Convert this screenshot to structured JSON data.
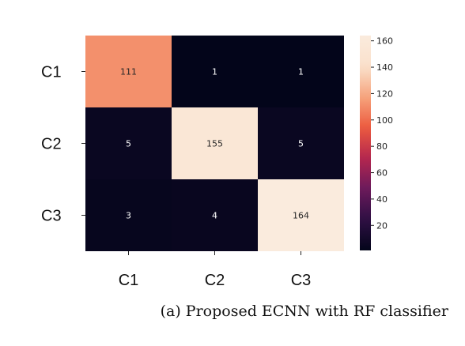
{
  "chart_data": {
    "type": "heatmap",
    "x_labels": [
      "C1",
      "C2",
      "C3"
    ],
    "y_labels": [
      "C1",
      "C2",
      "C3"
    ],
    "values": [
      [
        111,
        1,
        1
      ],
      [
        5,
        155,
        5
      ],
      [
        3,
        4,
        164
      ]
    ],
    "colorbar": {
      "range": [
        1,
        164
      ],
      "ticks": [
        20,
        40,
        60,
        80,
        100,
        120,
        140,
        160
      ]
    },
    "colormap": [
      "#03051a",
      "#2e0f43",
      "#6b1a5b",
      "#b4264f",
      "#ec5a3e",
      "#f6a47d",
      "#fae1cc",
      "#faebdd"
    ],
    "caption": "(a) Proposed ECNN with RF classifier"
  }
}
